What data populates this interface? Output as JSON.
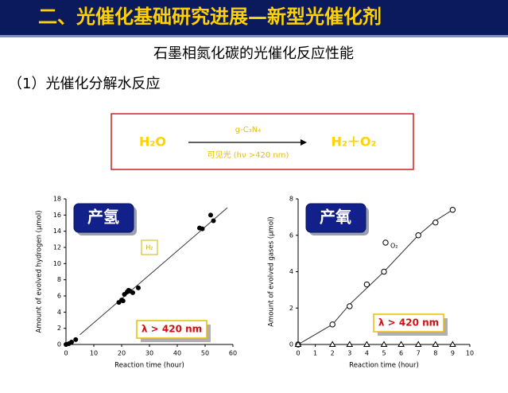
{
  "header": {
    "title": "二、光催化基础研究进展—新型光催化剂"
  },
  "subtitle": "石墨相氮化碳的光催化反应性能",
  "section": "（1）光催化分解水反应",
  "reaction": {
    "reactant": "H₂O",
    "catalyst": "g-C₃N₄",
    "condition": "可见光 (hν >420 nm)",
    "products": "H₂＋O₂"
  },
  "chart_data": [
    {
      "type": "scatter",
      "badge": "产氢",
      "xlabel": "Reaction time (hour)",
      "ylabel": "Amount of evolved hydrogen (μmol)",
      "xlim": [
        0,
        60
      ],
      "ylim": [
        0,
        18
      ],
      "xticks": [
        0,
        10,
        20,
        30,
        40,
        50,
        60
      ],
      "yticks": [
        0,
        2,
        4,
        6,
        8,
        10,
        12,
        14,
        16,
        18
      ],
      "series": [
        {
          "name": "H₂",
          "marker": "filled-circle",
          "color": "#000000",
          "x": [
            0,
            1,
            2,
            3.5,
            19,
            20,
            20.5,
            21,
            22,
            22.5,
            23,
            24,
            26,
            48,
            49,
            52,
            53
          ],
          "values": [
            0,
            0.1,
            0.3,
            0.6,
            5.2,
            5.5,
            5.4,
            6.2,
            6.5,
            6.7,
            6.6,
            6.4,
            7.0,
            14.4,
            14.3,
            16.0,
            15.3
          ]
        }
      ],
      "fit": {
        "x": [
          5,
          58
        ],
        "values": [
          1.2,
          16.9
        ]
      },
      "condition": "λ > 420 nm"
    },
    {
      "type": "scatter",
      "badge": "产氧",
      "xlabel": "Reaction time (hour)",
      "ylabel": "Amount of evolved gases (μmol)",
      "xlim": [
        0,
        10
      ],
      "ylim": [
        0,
        8
      ],
      "xticks": [
        0,
        1,
        2,
        3,
        4,
        5,
        6,
        7,
        8,
        9,
        10
      ],
      "yticks": [
        0,
        2,
        4,
        6,
        8
      ],
      "series": [
        {
          "name": "O₂",
          "marker": "open-circle",
          "color": "#000000",
          "x": [
            0,
            2,
            3,
            4,
            5,
            7,
            8,
            9
          ],
          "values": [
            0,
            1.1,
            2.1,
            3.3,
            4.0,
            6.0,
            6.7,
            7.4
          ]
        },
        {
          "marker": "open-triangle",
          "color": "#000000",
          "x": [
            0,
            2,
            3,
            4,
            5,
            6,
            7,
            8,
            9
          ],
          "values": [
            0,
            0,
            0,
            0,
            0,
            0,
            0,
            0,
            0
          ]
        }
      ],
      "fit": {
        "x": [
          0,
          2,
          3,
          4,
          5,
          6,
          7,
          8,
          9
        ],
        "values": [
          0,
          1.1,
          2.2,
          3.1,
          4.0,
          5.0,
          6.0,
          6.8,
          7.4
        ]
      },
      "condition": "λ > 420 nm"
    }
  ]
}
